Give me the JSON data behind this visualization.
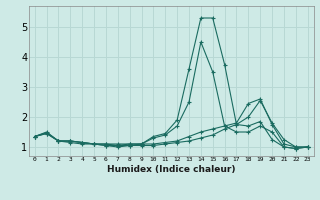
{
  "xlabel": "Humidex (Indice chaleur)",
  "ylabel": "",
  "xlim": [
    -0.5,
    23.5
  ],
  "ylim": [
    0.7,
    5.7
  ],
  "xticks": [
    0,
    1,
    2,
    3,
    4,
    5,
    6,
    7,
    8,
    9,
    10,
    11,
    12,
    13,
    14,
    15,
    16,
    17,
    18,
    19,
    20,
    21,
    22,
    23
  ],
  "yticks": [
    1,
    2,
    3,
    4,
    5
  ],
  "bg_color": "#ceeae6",
  "grid_color": "#b8d8d4",
  "line_color": "#1a6b60",
  "lines": [
    {
      "x": [
        0,
        1,
        2,
        3,
        4,
        5,
        6,
        7,
        8,
        9,
        10,
        11,
        12,
        13,
        14,
        15,
        16,
        17,
        18,
        19,
        20,
        21,
        22,
        23
      ],
      "y": [
        1.35,
        1.5,
        1.2,
        1.2,
        1.15,
        1.1,
        1.1,
        1.05,
        1.1,
        1.1,
        1.35,
        1.45,
        1.9,
        3.6,
        5.3,
        5.3,
        3.75,
        1.75,
        1.7,
        1.85,
        1.25,
        1.0,
        0.95,
        1.0
      ]
    },
    {
      "x": [
        0,
        1,
        2,
        3,
        4,
        5,
        6,
        7,
        8,
        9,
        10,
        11,
        12,
        13,
        14,
        15,
        16,
        17,
        18,
        19,
        20,
        21,
        22,
        23
      ],
      "y": [
        1.35,
        1.48,
        1.2,
        1.15,
        1.1,
        1.1,
        1.05,
        1.05,
        1.05,
        1.05,
        1.05,
        1.1,
        1.15,
        1.2,
        1.3,
        1.4,
        1.6,
        1.75,
        2.0,
        2.55,
        1.8,
        1.25,
        1.0,
        1.0
      ]
    },
    {
      "x": [
        0,
        1,
        2,
        3,
        4,
        5,
        6,
        7,
        8,
        9,
        10,
        11,
        12,
        13,
        14,
        15,
        16,
        17,
        18,
        19,
        20,
        21,
        22,
        23
      ],
      "y": [
        1.35,
        1.45,
        1.2,
        1.2,
        1.15,
        1.1,
        1.1,
        1.1,
        1.1,
        1.1,
        1.3,
        1.4,
        1.7,
        2.5,
        4.5,
        3.5,
        1.7,
        1.5,
        1.5,
        1.7,
        1.5,
        1.0,
        0.95,
        1.0
      ]
    },
    {
      "x": [
        0,
        1,
        2,
        3,
        4,
        5,
        6,
        7,
        8,
        9,
        10,
        11,
        12,
        13,
        14,
        15,
        16,
        17,
        18,
        19,
        20,
        21,
        22,
        23
      ],
      "y": [
        1.35,
        1.45,
        1.2,
        1.2,
        1.15,
        1.1,
        1.05,
        1.0,
        1.05,
        1.1,
        1.1,
        1.15,
        1.2,
        1.35,
        1.5,
        1.6,
        1.7,
        1.8,
        2.45,
        2.6,
        1.75,
        1.1,
        1.0,
        1.0
      ]
    }
  ]
}
